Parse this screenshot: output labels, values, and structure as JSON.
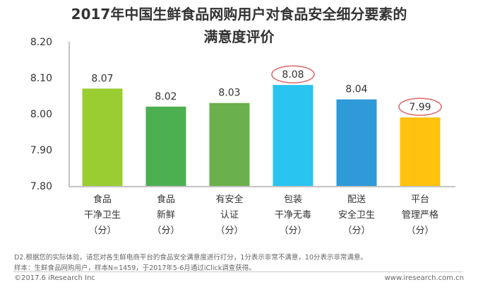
{
  "chart_data": {
    "type": "bar",
    "title_lines": [
      "2017年中国生鲜食品网购用户对食品安全细分要素的",
      "满意度评价"
    ],
    "categories": [
      [
        "食品",
        "干净卫生",
        "（分）"
      ],
      [
        "食品",
        "新鲜",
        "（分）"
      ],
      [
        "有安全",
        "认证",
        "（分）"
      ],
      [
        "包装",
        "干净无毒",
        "（分）"
      ],
      [
        "配送",
        "安全卫生",
        "（分）"
      ],
      [
        "平台",
        "管理严格",
        "（分）"
      ]
    ],
    "values": [
      8.07,
      8.02,
      8.03,
      8.08,
      8.04,
      7.99
    ],
    "value_labels": [
      "8.07",
      "8.02",
      "8.03",
      "8.08",
      "8.04",
      "7.99"
    ],
    "colors": [
      "#9ACD32",
      "#4CAF50",
      "#6AB04C",
      "#29C4F0",
      "#2F9AD8",
      "#FFC20E"
    ],
    "circled": [
      3,
      5
    ],
    "circle_color": "#E06666",
    "ylim": [
      7.8,
      8.2
    ],
    "yticks": [
      "8.20",
      "8.10",
      "8.00",
      "7.90",
      "7.80"
    ],
    "grid": false,
    "xlabel": "",
    "ylabel": ""
  },
  "notes": [
    "D2.根据您的实际体验，请您对各生鲜电商平台的食品安全满意度进行打分，1分表示非常不满意，10分表示非常满意。",
    "样本：生鲜食品网购用户，样本N=1459，于2017年5-6月通过iClick调查获得。"
  ],
  "footer": {
    "copyright": "©2017.6 iResearch Inc",
    "website": "www.iresearch.com.cn"
  }
}
